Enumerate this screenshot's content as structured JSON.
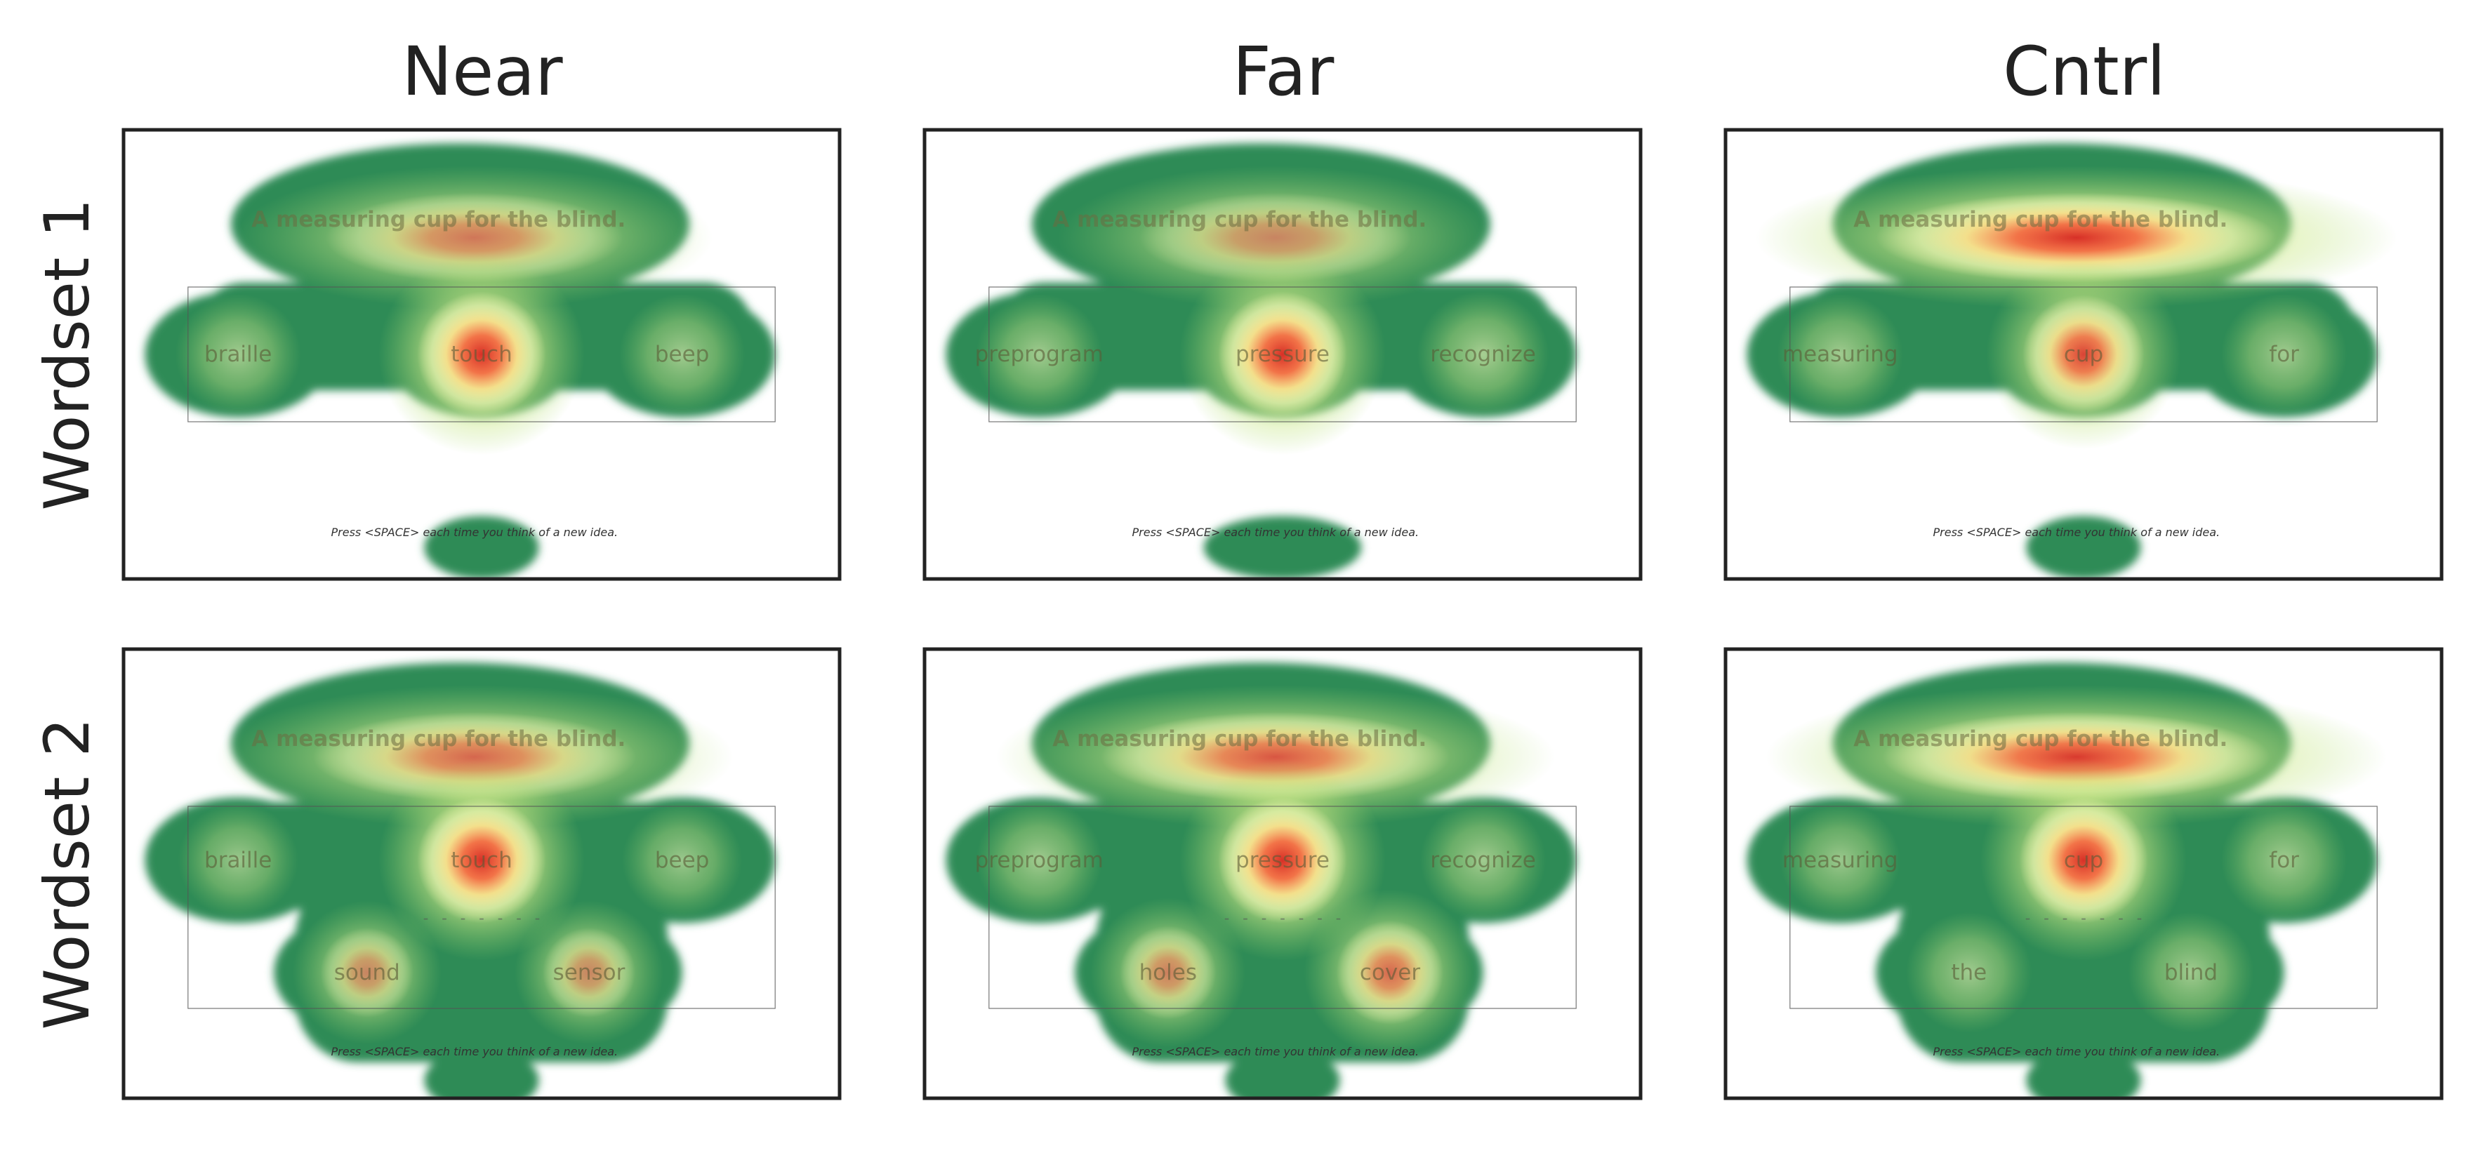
{
  "chart_data": {
    "type": "heatmap",
    "columns": [
      "Near",
      "Far",
      "Cntrl"
    ],
    "rows": [
      "Wordset 1",
      "Wordset 2"
    ],
    "colormap": [
      "#2e8b57",
      "#ffffbf",
      "#d73027"
    ],
    "sentence": "A measuring cup for the blind.",
    "footer": "Press <SPACE> each time you think of a new idea.",
    "dashes": "- - - - - - -",
    "panels": [
      {
        "row": "Wordset 1",
        "col": "Near",
        "words": [
          "braille",
          "touch",
          "beep"
        ],
        "hotspots": [
          {
            "label": "A measuring cup for the blind.",
            "intensity": 0.6
          },
          {
            "label": "braille",
            "intensity": 0.3
          },
          {
            "label": "touch",
            "intensity": 1.0
          },
          {
            "label": "beep",
            "intensity": 0.3
          }
        ]
      },
      {
        "row": "Wordset 1",
        "col": "Far",
        "words": [
          "preprogram",
          "pressure",
          "recognize"
        ],
        "hotspots": [
          {
            "label": "A measuring cup for the blind.",
            "intensity": 0.5
          },
          {
            "label": "preprogram",
            "intensity": 0.3
          },
          {
            "label": "pressure",
            "intensity": 1.0
          },
          {
            "label": "recognize",
            "intensity": 0.35
          }
        ]
      },
      {
        "row": "Wordset 1",
        "col": "Cntrl",
        "words": [
          "measuring",
          "cup",
          "for"
        ],
        "hotspots": [
          {
            "label": "A measuring cup for the blind.",
            "intensity": 1.0
          },
          {
            "label": "measuring",
            "intensity": 0.3
          },
          {
            "label": "cup",
            "intensity": 0.9
          },
          {
            "label": "for",
            "intensity": 0.3
          }
        ]
      },
      {
        "row": "Wordset 2",
        "col": "Near",
        "words": [
          "braille",
          "touch",
          "beep",
          "sound",
          "sensor"
        ],
        "hotspots": [
          {
            "label": "A measuring cup for the blind.",
            "intensity": 0.7
          },
          {
            "label": "braille",
            "intensity": 0.25
          },
          {
            "label": "touch",
            "intensity": 1.0
          },
          {
            "label": "beep",
            "intensity": 0.25
          },
          {
            "label": "sound",
            "intensity": 0.5
          },
          {
            "label": "sensor",
            "intensity": 0.5
          }
        ]
      },
      {
        "row": "Wordset 2",
        "col": "Far",
        "words": [
          "preprogram",
          "pressure",
          "recognize",
          "holes",
          "cover"
        ],
        "hotspots": [
          {
            "label": "A measuring cup for the blind.",
            "intensity": 0.8
          },
          {
            "label": "preprogram",
            "intensity": 0.3
          },
          {
            "label": "pressure",
            "intensity": 1.0
          },
          {
            "label": "recognize",
            "intensity": 0.3
          },
          {
            "label": "holes",
            "intensity": 0.55
          },
          {
            "label": "cover",
            "intensity": 0.7
          }
        ]
      },
      {
        "row": "Wordset 2",
        "col": "Cntrl",
        "words": [
          "measuring",
          "cup",
          "for",
          "the",
          "blind"
        ],
        "hotspots": [
          {
            "label": "A measuring cup for the blind.",
            "intensity": 0.95
          },
          {
            "label": "measuring",
            "intensity": 0.25
          },
          {
            "label": "cup",
            "intensity": 1.0
          },
          {
            "label": "for",
            "intensity": 0.3
          },
          {
            "label": "the",
            "intensity": 0.3
          },
          {
            "label": "blind",
            "intensity": 0.3
          }
        ]
      }
    ]
  }
}
